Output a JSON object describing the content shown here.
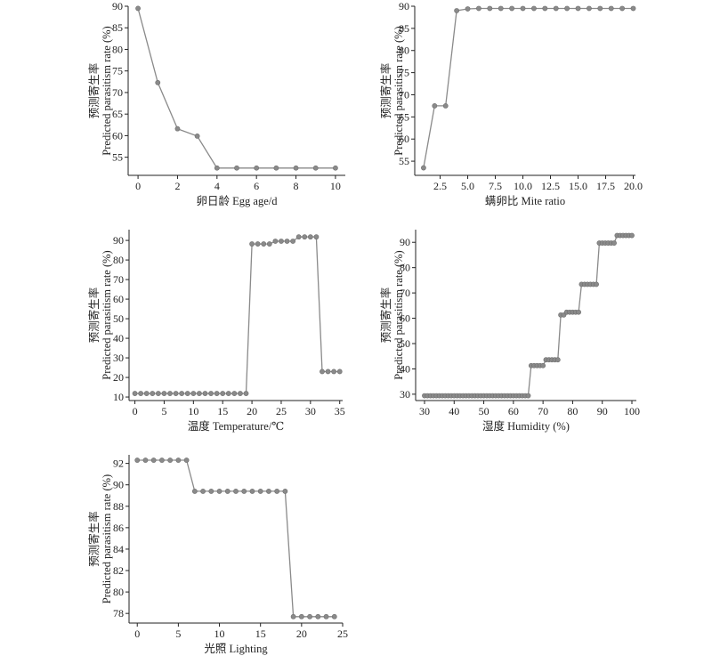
{
  "colors": {
    "series": "#8a8a8a",
    "axis": "#222222"
  },
  "chart_data": [
    {
      "id": "egg-age",
      "type": "line",
      "xlabel": "卵日龄 Egg age/d",
      "ylabel_cn": "预测寄生率",
      "ylabel_en": "Predicted parasitism rate (%)",
      "xlim": [
        -0.5,
        10.5
      ],
      "ylim": [
        50.8,
        90
      ],
      "xticks": [
        0,
        2,
        4,
        6,
        8,
        10
      ],
      "yticks": [
        55,
        60,
        65,
        70,
        75,
        80,
        85,
        90
      ],
      "x": [
        0,
        1,
        2,
        3,
        4,
        5,
        6,
        7,
        8,
        9,
        10
      ],
      "y": [
        89.5,
        72.3,
        61.6,
        59.9,
        52.5,
        52.5,
        52.5,
        52.5,
        52.5,
        52.5,
        52.5
      ]
    },
    {
      "id": "mite-ratio",
      "type": "line",
      "xlabel": "螨卵比 Mite ratio",
      "ylabel_cn": "预测寄生率",
      "ylabel_en": "Predicted parasitism rate (%)",
      "xlim": [
        0.2,
        20.2
      ],
      "ylim": [
        51.8,
        90
      ],
      "xticks": [
        2.5,
        5.0,
        7.5,
        10.0,
        12.5,
        15.0,
        17.5,
        20.0
      ],
      "xtick_labels": [
        "2.5",
        "5.0",
        "7.5",
        "10.0",
        "12.5",
        "15.0",
        "17.5",
        "20.0"
      ],
      "yticks": [
        55,
        60,
        65,
        70,
        75,
        80,
        85,
        90
      ],
      "x": [
        1,
        2,
        3,
        4,
        5,
        6,
        7,
        8,
        9,
        10,
        11,
        12,
        13,
        14,
        15,
        16,
        17,
        18,
        19,
        20
      ],
      "y": [
        53.5,
        67.5,
        67.5,
        89.0,
        89.4,
        89.5,
        89.5,
        89.5,
        89.5,
        89.5,
        89.5,
        89.5,
        89.5,
        89.5,
        89.5,
        89.5,
        89.5,
        89.5,
        89.5,
        89.5
      ]
    },
    {
      "id": "temperature",
      "type": "line",
      "xlabel": "温度 Temperature/℃",
      "ylabel_cn": "预测寄生率",
      "ylabel_en": "Predicted parasitism rate (%)",
      "xlim": [
        -1,
        35.5
      ],
      "ylim": [
        8.2,
        95.5
      ],
      "xticks": [
        0,
        5,
        10,
        15,
        20,
        25,
        30,
        35
      ],
      "yticks": [
        10,
        20,
        30,
        40,
        50,
        60,
        70,
        80,
        90
      ],
      "x": [
        0,
        1,
        2,
        3,
        4,
        5,
        6,
        7,
        8,
        9,
        10,
        11,
        12,
        13,
        14,
        15,
        16,
        17,
        18,
        19,
        20,
        21,
        22,
        23,
        24,
        25,
        26,
        27,
        28,
        29,
        30,
        31,
        32,
        33,
        34,
        35
      ],
      "y": [
        11.8,
        11.8,
        11.8,
        11.8,
        11.8,
        11.8,
        11.8,
        11.8,
        11.8,
        11.8,
        11.8,
        11.8,
        11.8,
        11.8,
        11.8,
        11.8,
        11.8,
        11.8,
        11.8,
        11.8,
        88.2,
        88.2,
        88.2,
        88.2,
        89.6,
        89.6,
        89.6,
        89.6,
        91.8,
        91.8,
        91.8,
        91.8,
        23.0,
        23.0,
        23.0,
        23.0
      ]
    },
    {
      "id": "humidity",
      "type": "line",
      "xlabel": "湿度 Humidity (%)",
      "ylabel_cn": "预测寄生率",
      "ylabel_en": "Predicted parasitism rate (%)",
      "xlim": [
        27,
        101.5
      ],
      "ylim": [
        27.5,
        95
      ],
      "xticks": [
        30,
        40,
        50,
        60,
        70,
        80,
        90,
        100
      ],
      "yticks": [
        30,
        40,
        50,
        60,
        70,
        80,
        90
      ],
      "x": [
        30,
        31,
        32,
        33,
        34,
        35,
        36,
        37,
        38,
        39,
        40,
        41,
        42,
        43,
        44,
        45,
        46,
        47,
        48,
        49,
        50,
        51,
        52,
        53,
        54,
        55,
        56,
        57,
        58,
        59,
        60,
        61,
        62,
        63,
        64,
        65,
        66,
        67,
        68,
        69,
        70,
        71,
        72,
        73,
        74,
        75,
        76,
        77,
        78,
        79,
        80,
        81,
        82,
        83,
        84,
        85,
        86,
        87,
        88,
        89,
        90,
        91,
        92,
        93,
        94,
        95,
        96,
        97,
        98,
        99,
        100
      ],
      "y": [
        29.4,
        29.4,
        29.4,
        29.4,
        29.4,
        29.4,
        29.4,
        29.4,
        29.4,
        29.4,
        29.4,
        29.4,
        29.4,
        29.4,
        29.4,
        29.4,
        29.4,
        29.4,
        29.4,
        29.4,
        29.4,
        29.4,
        29.4,
        29.4,
        29.4,
        29.4,
        29.4,
        29.4,
        29.4,
        29.4,
        29.4,
        29.4,
        29.4,
        29.4,
        29.4,
        29.4,
        41.3,
        41.3,
        41.3,
        41.3,
        41.3,
        43.6,
        43.6,
        43.6,
        43.6,
        43.6,
        61.3,
        61.3,
        62.4,
        62.4,
        62.4,
        62.4,
        62.4,
        73.4,
        73.4,
        73.4,
        73.4,
        73.4,
        73.4,
        89.7,
        89.7,
        89.7,
        89.7,
        89.7,
        89.7,
        92.7,
        92.7,
        92.7,
        92.7,
        92.7,
        92.7
      ]
    },
    {
      "id": "lighting",
      "type": "line",
      "xlabel": "光照 Lighting",
      "ylabel_cn": "预测寄生率",
      "ylabel_en": "Predicted parasitism rate (%)",
      "xlim": [
        -1,
        25
      ],
      "ylim": [
        77.1,
        92.8
      ],
      "xticks": [
        0,
        5,
        10,
        15,
        20,
        25
      ],
      "yticks": [
        78,
        80,
        82,
        84,
        86,
        88,
        90,
        92
      ],
      "x": [
        0,
        1,
        2,
        3,
        4,
        5,
        6,
        7,
        8,
        9,
        10,
        11,
        12,
        13,
        14,
        15,
        16,
        17,
        18,
        19,
        20,
        21,
        22,
        23,
        24
      ],
      "y": [
        92.3,
        92.3,
        92.3,
        92.3,
        92.3,
        92.3,
        92.3,
        89.4,
        89.4,
        89.4,
        89.4,
        89.4,
        89.4,
        89.4,
        89.4,
        89.4,
        89.4,
        89.4,
        89.4,
        77.7,
        77.7,
        77.7,
        77.7,
        77.7,
        77.7
      ]
    }
  ]
}
